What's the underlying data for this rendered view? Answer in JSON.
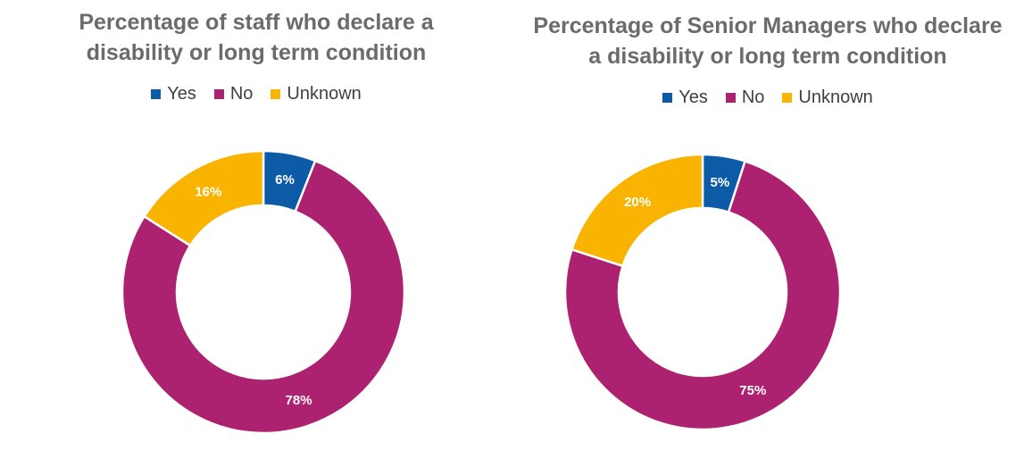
{
  "colors": {
    "Yes": "#0d5aa7",
    "No": "#ad2270",
    "Unknown": "#f8b400",
    "title": "#6b6b6b",
    "legend_text": "#404040"
  },
  "chart_data": [
    {
      "type": "pie",
      "donut": true,
      "title_lines": [
        "Percentage of staff who declare a",
        "disability or long term condition"
      ],
      "legend": [
        "Yes",
        "No",
        "Unknown"
      ],
      "legend_position": "top",
      "slices": [
        {
          "label": "Yes",
          "value": 6,
          "display": "6%"
        },
        {
          "label": "No",
          "value": 78,
          "display": "78%"
        },
        {
          "label": "Unknown",
          "value": 16,
          "display": "16%"
        }
      ]
    },
    {
      "type": "pie",
      "donut": true,
      "title_lines": [
        "Percentage of Senior Managers who declare",
        "a disability or long term condition"
      ],
      "legend": [
        "Yes",
        "No",
        "Unknown"
      ],
      "legend_position": "top",
      "slices": [
        {
          "label": "Yes",
          "value": 5,
          "display": "5%"
        },
        {
          "label": "No",
          "value": 75,
          "display": "75%"
        },
        {
          "label": "Unknown",
          "value": 20,
          "display": "20%"
        }
      ]
    }
  ]
}
